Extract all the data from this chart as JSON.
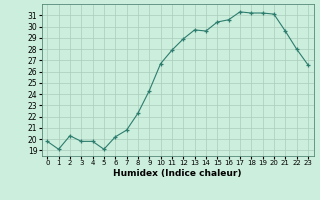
{
  "x": [
    0,
    1,
    2,
    3,
    4,
    5,
    6,
    7,
    8,
    9,
    10,
    11,
    12,
    13,
    14,
    15,
    16,
    17,
    18,
    19,
    20,
    21,
    22,
    23
  ],
  "y": [
    19.8,
    19.1,
    20.3,
    19.8,
    19.8,
    19.1,
    20.2,
    20.8,
    22.3,
    24.3,
    26.7,
    27.9,
    28.9,
    29.7,
    29.6,
    30.4,
    30.6,
    31.3,
    31.2,
    31.2,
    31.1,
    29.6,
    28.0,
    26.6
  ],
  "xlabel": "Humidex (Indice chaleur)",
  "xlim": [
    -0.5,
    23.5
  ],
  "ylim": [
    18.5,
    32.0
  ],
  "yticks": [
    19,
    20,
    21,
    22,
    23,
    24,
    25,
    26,
    27,
    28,
    29,
    30,
    31
  ],
  "xticks": [
    0,
    1,
    2,
    3,
    4,
    5,
    6,
    7,
    8,
    9,
    10,
    11,
    12,
    13,
    14,
    15,
    16,
    17,
    18,
    19,
    20,
    21,
    22,
    23
  ],
  "line_color": "#2d7d6e",
  "bg_color": "#cceedd",
  "grid_color": "#aaccbb"
}
